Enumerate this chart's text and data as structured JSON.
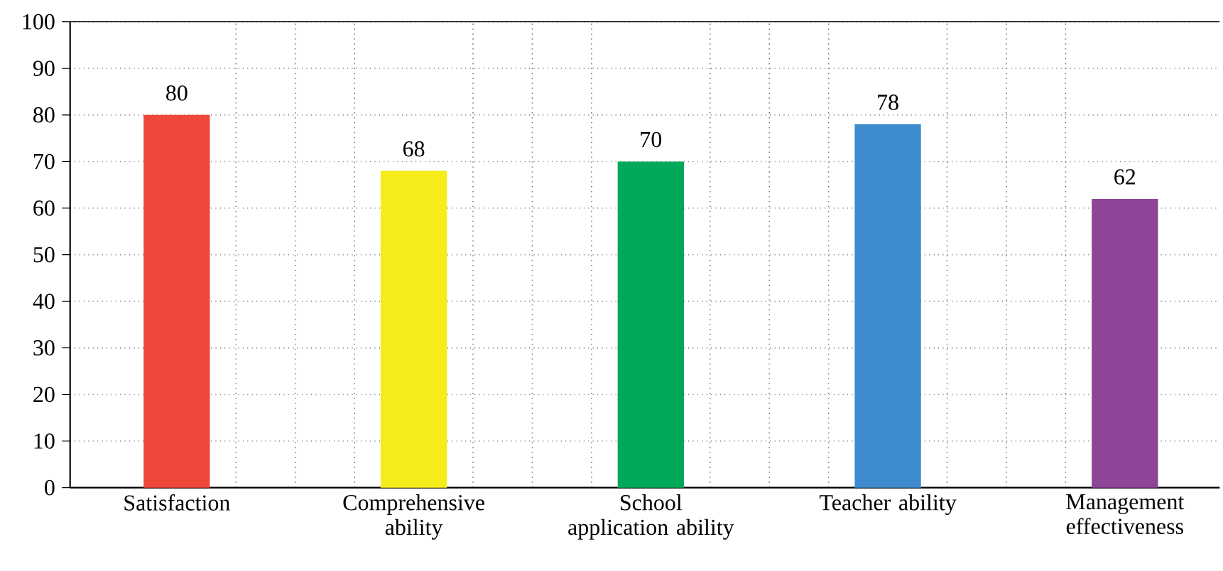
{
  "chart_data": {
    "type": "bar",
    "categories": [
      "Satisfaction",
      "Comprehensive ability",
      "School application ability",
      "Teacher ability",
      "Management effectiveness"
    ],
    "values": [
      80,
      68,
      70,
      78,
      62
    ],
    "colors": [
      "#f0473a",
      "#f5ec1a",
      "#00a859",
      "#3e8ccf",
      "#8e4598"
    ],
    "ylim": [
      0,
      100
    ],
    "yticks": [
      0,
      10,
      20,
      30,
      40,
      50,
      60,
      70,
      80,
      90,
      100
    ],
    "grid": true,
    "data_labels": true
  }
}
